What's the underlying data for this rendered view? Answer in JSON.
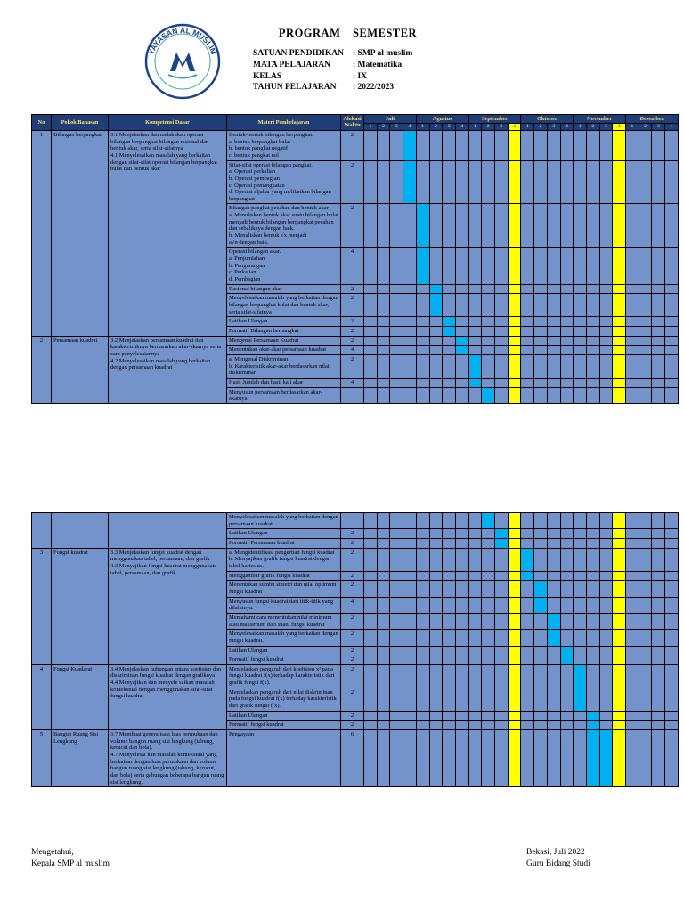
{
  "header": {
    "title": "PROGRAM SEMESTER",
    "logo": {
      "ring_text": "YAYASAN AL MUSLIM"
    },
    "info": [
      {
        "label": "SATUAN PENDIDIKAN",
        "value": ": SMP al muslim"
      },
      {
        "label": "MATA PELAJARAN",
        "value": ": Matematika"
      },
      {
        "label": "KELAS",
        "value": ": IX"
      },
      {
        "label": "TAHUN PELAJARAN",
        "value": ": 2022/2023"
      }
    ]
  },
  "table": {
    "columns": [
      "No",
      "Pokok Bahasan",
      "Kompetensi Dasar",
      "Materi Pembelajaran",
      "Alokasi Waktu"
    ],
    "months": [
      {
        "name": "Juli",
        "weeks": [
          "1",
          "2",
          "3",
          "4"
        ]
      },
      {
        "name": "Agustus",
        "weeks": [
          "1",
          "2",
          "3",
          "4"
        ]
      },
      {
        "name": "September",
        "weeks": [
          "1",
          "2",
          "3",
          "4"
        ]
      },
      {
        "name": "Oktober",
        "weeks": [
          "1",
          "2",
          "3",
          "4"
        ]
      },
      {
        "name": "November",
        "weeks": [
          "1",
          "2",
          "3",
          "4"
        ]
      },
      {
        "name": "Desember",
        "weeks": [
          "1",
          "2",
          "3",
          "4"
        ]
      }
    ],
    "yellow_week_cols": [
      11,
      19
    ],
    "colors": {
      "header_bg": "#1f3e78",
      "header_text": "#ffdf6b",
      "cell_blue": "#7493ca",
      "mark_cyan": "#00b0f0",
      "mark_yellow": "#ffff00"
    },
    "blocks": [
      {
        "show_header": true,
        "groups": [
          {
            "no": "1",
            "topic": "Bilangan berpangkat",
            "kd": "3.1 Menjelaskan dan melakukan operasi bilangan berpangkat bilangan rasional dan bentuk akar, serta sifat-sifatnya\n4.1 Menyelesaikan masalah yang berkaitan dengan sifat-sifat operasi bilangan berpangkat bulat dan bentuk akar",
            "items": [
              {
                "materi": "Bentuk-bentuk bilangan berpangkat.\na. bentuk berpangkat bulat\nb. bentuk pangkat negatif\nc. bentuk pangkat nol",
                "jp": "2",
                "weeks": [
                  3
                ]
              },
              {
                "materi": "Sifat-sifat operasi bilangan pangkat.\na. Operasi perkalian\nb. Operasi pembagian\nc. Operasi pemangkatan\nd. Operasi aljabar yang melibatkan bilangan berpangkat",
                "jp": "2",
                "weeks": [
                  3
                ]
              },
              {
                "materi": "Bilangan pangkat pecahan dan bentuk akar\na. Menuliskan bentuk akar suatu bilangan bulat menjadi bentuk bilangan berpangkat pecahan dan sebaliknya dengan baik.\nb. Menuliskan bentuk √x menjadi\na√n dengan baik.",
                "jp": "2",
                "weeks": [
                  4
                ]
              },
              {
                "materi": "Operasi bilangan akar.\na. Penjumlahan\nb. Pengurangan\nc. Perkalian\nd. Pembagian",
                "jp": "4",
                "weeks": [
                  4
                ]
              },
              {
                "materi": "Rasional bilangan akar",
                "jp": "2",
                "weeks": [
                  5
                ]
              },
              {
                "materi": "Menyelesaikan masalah yang berkaitan dengan bilangan berpangkat bulat dan bentuk akar, serta sifat-sifatnya",
                "jp": "2",
                "weeks": [
                  5
                ]
              },
              {
                "materi": "Latihan Ulangan",
                "jp": "2",
                "weeks": [
                  6
                ]
              },
              {
                "materi": "Formatif Bilangan berpangkat",
                "jp": "2",
                "weeks": [
                  6
                ]
              }
            ]
          },
          {
            "no": "2",
            "topic": "Persamaan kuadrat",
            "kd": "3.2 Menjelaskan persamaan kuadrat dan karakteristiknya berdasarkan akar-akarnya serta cara penyelesaiannya\n4.2 Menyelesaikan masalah yang berkaitan dengan persamaan kuadrat",
            "items": [
              {
                "materi": "Mengenal Persamaan Kuadrat",
                "jp": "2",
                "weeks": [
                  7
                ]
              },
              {
                "materi": "Menentukan akar-akar persamaan kuadrat",
                "jp": "4",
                "weeks": [
                  7
                ]
              },
              {
                "materi": "a. Mengenal Diskriminan\nb. Karakteristik akar-akar berdasarkan nilai diskriminan",
                "jp": "2",
                "weeks": [
                  8
                ]
              },
              {
                "materi": "Hasil Jumlah dan hasil kali akar",
                "jp": "4",
                "weeks": [
                  8
                ]
              },
              {
                "materi": "Menyusun persamaan berdasarkan akar-akarnya",
                "jp": "",
                "weeks": [
                  9
                ]
              }
            ]
          }
        ]
      },
      {
        "show_header": false,
        "groups": [
          {
            "no": "",
            "topic": "",
            "kd": "",
            "items": [
              {
                "materi": "Menyelesaikan masalah yang berkaitan dengan persamaan kuadrat.",
                "jp": "",
                "weeks": [
                  9
                ]
              },
              {
                "materi": "Latihan Ulangan",
                "jp": "2",
                "weeks": [
                  10
                ]
              },
              {
                "materi": "Formatif Persamaan kuadrat",
                "jp": "2",
                "weeks": [
                  10
                ]
              }
            ]
          },
          {
            "no": "3",
            "topic": "Fungsi kuadrat",
            "kd": "3.3 Menjelaskan fungsi kuadrat dengan menggunakan tabel, persamaan, dan grafik\n4.3 Menyajikan fungsi kuadrat menggunakan tabel, persamaan, dan grafik",
            "items": [
              {
                "materi": "a. Mengidentifikasi pengertian fungsi kuadrat\nb. Menyajikan grafik fungsi kuadrat dengan tabel kartesius.",
                "jp": "2",
                "weeks": [
                  12
                ]
              },
              {
                "materi": "Menggambar grafik fungsi kuadrat",
                "jp": "2",
                "weeks": [
                  12
                ]
              },
              {
                "materi": "Menentukan sumbu simetri dan nilai optimum fungsi kuadrat",
                "jp": "2",
                "weeks": [
                  13
                ]
              },
              {
                "materi": "Menyusun fungsi kuadrat dari titik-titik yang dilaluinya.",
                "jp": "4",
                "weeks": [
                  13
                ]
              },
              {
                "materi": "Memahami cara menentukan nilai minimum atau maksimum dari suatu fungsi kuadrat",
                "jp": "2",
                "weeks": [
                  14
                ]
              },
              {
                "materi": "Menyelesaikan masalah yang berkaitan dengan fungsi kuadrat.",
                "jp": "2",
                "weeks": [
                  14
                ]
              },
              {
                "materi": "Latihan Ulangan",
                "jp": "2",
                "weeks": [
                  15
                ]
              },
              {
                "materi": "Formatif fungsi kuadrat",
                "jp": "2",
                "weeks": [
                  15
                ]
              }
            ]
          },
          {
            "no": "4",
            "topic": "Fungsi Kuadarat",
            "kd": "3.4 Menjelaskan hubungan antara koefisien dan diskriminan fungsi kuadrat dengan grafiknya\n4.4 Menyajikan dan menyele saikan masalah kontekstual dengan menggunakan sifat-sifat fungsi kuadrat",
            "items": [
              {
                "materi": "Menjelaskan pengaruh dari koefisien x² pada fungsi kuadrat f(x) terhadap karakteristik dari grafik fungsi f(x).",
                "jp": "2",
                "weeks": [
                  16
                ]
              },
              {
                "materi": "Menjelaskan pengaruh dari nilai diskriminan pada fungsi kuadrat f(x) terhadap karakteristik dari grafik fungsi f(x).",
                "jp": "2",
                "weeks": [
                  16
                ]
              },
              {
                "materi": "Latihan Ulangan",
                "jp": "2",
                "weeks": [
                  17
                ]
              },
              {
                "materi": "Formatif fungsi kuadrat",
                "jp": "2",
                "weeks": [
                  17
                ]
              }
            ]
          },
          {
            "no": "5",
            "topic": "Bangun Ruang Sisi Lengkung",
            "kd": "3.7  Membuat generalisasi luas permukaan dan volume bangun ruang sisi lengkung (tabung, kerucut dan bola).\n4.7 Menyelesai kan masalah kontekstual yang berkaitan dengan luas permukaan dan volume bangun ruang sisi lengkung (tabung, kerucut, dan bola) serta gabungan beberapa bangun ruang sisi lengkung.",
            "items": [
              {
                "materi": "Pengayaan",
                "jp": "6",
                "weeks": [
                  17,
                  18
                ]
              }
            ]
          }
        ]
      }
    ]
  },
  "footer": {
    "left": [
      "Mengetahui,",
      "Kepala SMP al muslim"
    ],
    "right": [
      "Bekasi, Juli 2022",
      "Guru Bidang Studi"
    ]
  }
}
